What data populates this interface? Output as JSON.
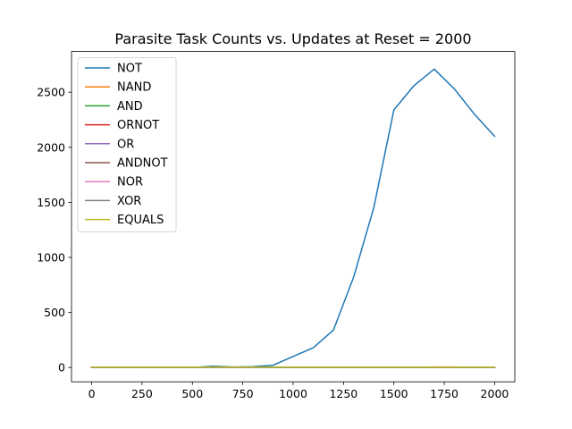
{
  "chart_data": {
    "type": "line",
    "title": "Parasite Task Counts vs. Updates at Reset = 2000",
    "xlabel": "",
    "ylabel": "",
    "xlim": [
      -100,
      2100
    ],
    "ylim": [
      -130,
      2870
    ],
    "x_ticks": [
      0,
      250,
      500,
      750,
      1000,
      1250,
      1500,
      1750,
      2000
    ],
    "y_ticks": [
      0,
      500,
      1000,
      1500,
      2000,
      2500
    ],
    "legend_position": "top-left",
    "grid": false,
    "x": [
      0,
      100,
      200,
      300,
      400,
      500,
      600,
      700,
      800,
      900,
      1000,
      1100,
      1200,
      1300,
      1400,
      1500,
      1600,
      1700,
      1800,
      1900,
      2000
    ],
    "series": [
      {
        "name": "NOT",
        "color": "#1f77b4",
        "values": [
          0,
          0,
          0,
          0,
          0,
          0,
          12,
          5,
          8,
          20,
          100,
          180,
          340,
          820,
          1450,
          2340,
          2560,
          2710,
          2530,
          2300,
          2100
        ]
      },
      {
        "name": "NAND",
        "color": "#ff7f0e",
        "values": [
          0,
          0,
          0,
          0,
          0,
          0,
          0,
          0,
          0,
          0,
          0,
          0,
          0,
          0,
          0,
          0,
          0,
          5,
          5,
          2,
          2
        ]
      },
      {
        "name": "AND",
        "color": "#2ca02c",
        "values": [
          0,
          0,
          0,
          0,
          0,
          0,
          0,
          0,
          0,
          0,
          0,
          0,
          0,
          0,
          0,
          0,
          0,
          0,
          0,
          0,
          0
        ]
      },
      {
        "name": "ORNOT",
        "color": "#d62728",
        "values": [
          0,
          0,
          0,
          0,
          0,
          0,
          0,
          0,
          0,
          0,
          0,
          0,
          0,
          0,
          0,
          0,
          0,
          0,
          0,
          0,
          0
        ]
      },
      {
        "name": "OR",
        "color": "#9467bd",
        "values": [
          0,
          0,
          0,
          0,
          0,
          0,
          0,
          0,
          0,
          0,
          0,
          0,
          0,
          0,
          0,
          0,
          0,
          0,
          0,
          0,
          0
        ]
      },
      {
        "name": "ANDNOT",
        "color": "#8c564b",
        "values": [
          0,
          0,
          0,
          0,
          0,
          0,
          0,
          0,
          0,
          0,
          0,
          0,
          0,
          0,
          0,
          0,
          0,
          0,
          0,
          0,
          0
        ]
      },
      {
        "name": "NOR",
        "color": "#e377c2",
        "values": [
          0,
          0,
          0,
          0,
          0,
          0,
          0,
          0,
          0,
          0,
          0,
          0,
          0,
          0,
          0,
          0,
          0,
          0,
          0,
          0,
          0
        ]
      },
      {
        "name": "XOR",
        "color": "#7f7f7f",
        "values": [
          0,
          0,
          0,
          0,
          0,
          0,
          0,
          0,
          0,
          0,
          0,
          0,
          0,
          0,
          0,
          0,
          0,
          0,
          0,
          0,
          0
        ]
      },
      {
        "name": "EQUALS",
        "color": "#bcbd22",
        "values": [
          3,
          3,
          3,
          3,
          3,
          3,
          3,
          3,
          3,
          3,
          3,
          3,
          3,
          3,
          3,
          3,
          3,
          3,
          3,
          3,
          3
        ]
      }
    ]
  }
}
